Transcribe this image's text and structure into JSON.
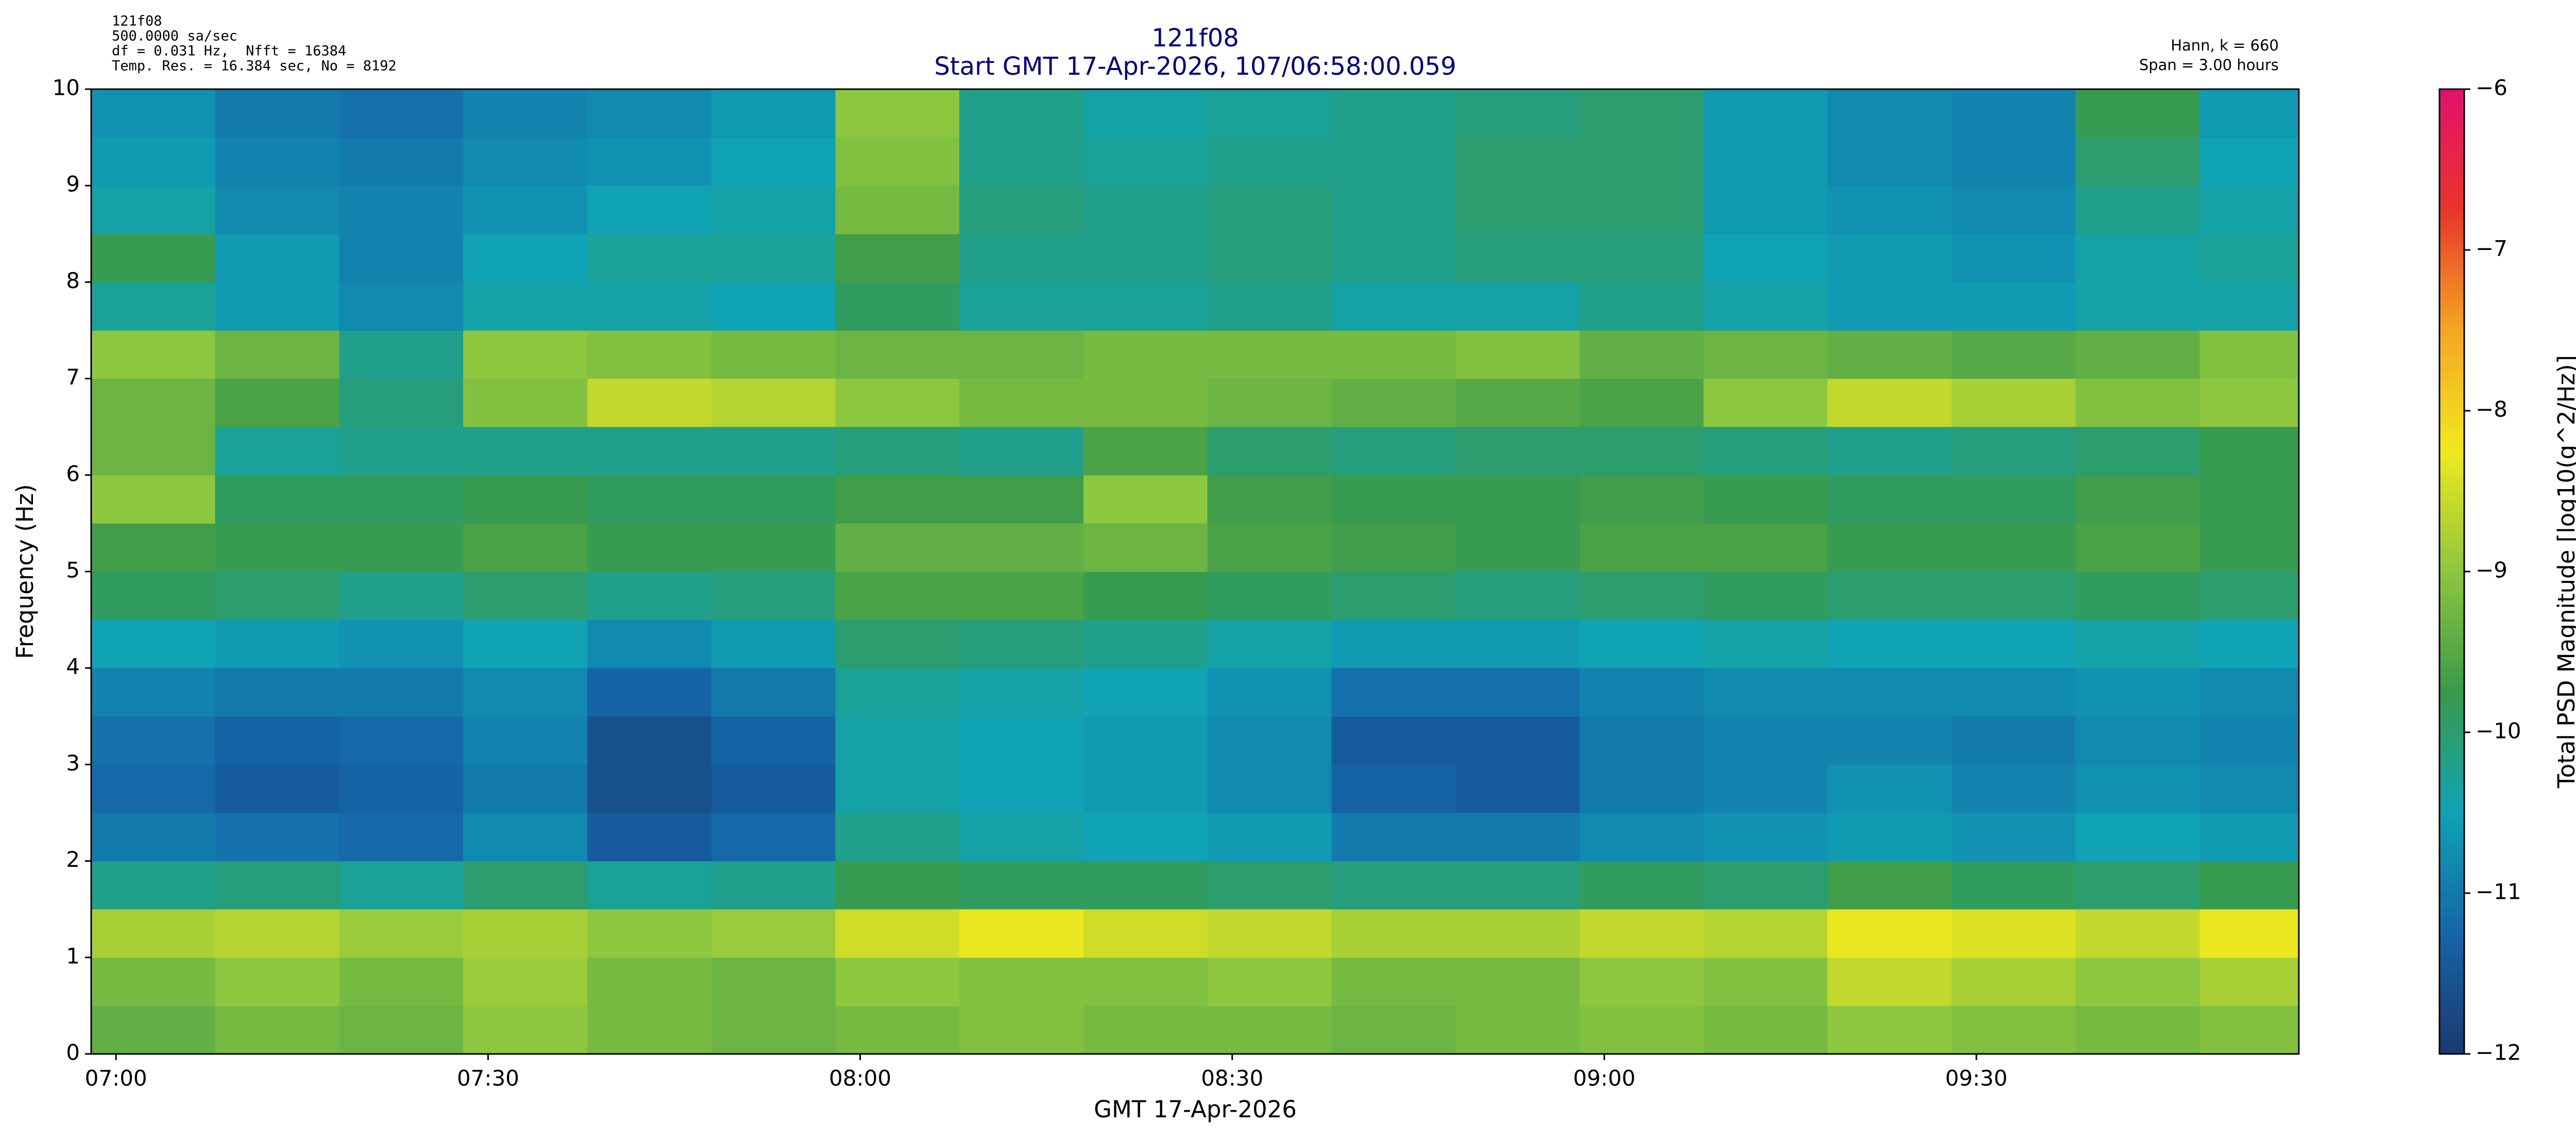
{
  "chart_data": {
    "type": "heatmap",
    "title": "121f08",
    "subtitle": "Start GMT 17-Apr-2026, 107/06:58:00.059",
    "info_left": [
      "121f08",
      "500.0000 sa/sec",
      "df = 0.031 Hz,  Nfft = 16384",
      "Temp. Res. = 16.384 sec, No = 8192"
    ],
    "info_right": [
      "Hann, k = 660",
      "Span = 3.00 hours"
    ],
    "xlabel": "GMT 17-Apr-2026",
    "ylabel": "Frequency (Hz)",
    "colorbar_label": "Total PSD Magnitude [log10(g^2/Hz)]",
    "xlim": [
      "06:58",
      "09:56"
    ],
    "xticks": [
      "07:00",
      "07:30",
      "08:00",
      "08:30",
      "09:00",
      "09:30"
    ],
    "ylim": [
      0,
      10
    ],
    "yticks": [
      0,
      1,
      2,
      3,
      4,
      5,
      6,
      7,
      8,
      9,
      10
    ],
    "clim": [
      -12,
      -6
    ],
    "cticks": [
      {
        "value": -12,
        "label": "−12"
      },
      {
        "value": -11,
        "label": "−11"
      },
      {
        "value": -10,
        "label": "−10"
      },
      {
        "value": -9,
        "label": "−9"
      },
      {
        "value": -8,
        "label": "−8"
      },
      {
        "value": -7,
        "label": "−7"
      },
      {
        "value": -6,
        "label": "−6"
      }
    ],
    "colormap": [
      "#1b3a70",
      "#1565a8",
      "#0fa3b5",
      "#3a9a4a",
      "#8dc63f",
      "#f1e81d",
      "#f5a623",
      "#e8352b",
      "#e3106e"
    ],
    "x": [
      "06:58",
      "07:08",
      "07:18",
      "07:28",
      "07:38",
      "07:48",
      "07:58",
      "08:08",
      "08:18",
      "08:28",
      "08:38",
      "08:48",
      "08:58",
      "09:08",
      "09:18",
      "09:28",
      "09:38",
      "09:48"
    ],
    "y": [
      0,
      0.5,
      1,
      1.5,
      2,
      2.5,
      3,
      3.5,
      4,
      4.5,
      5,
      5.5,
      6,
      6.5,
      7,
      7.5,
      8,
      8.5,
      9,
      9.5,
      10
    ],
    "z": [
      [
        -9.4,
        -9.2,
        -9.3,
        -9.0,
        -9.2,
        -9.3,
        -9.2,
        -9.1,
        -9.2,
        -9.2,
        -9.3,
        -9.2,
        -9.1,
        -9.2,
        -9.0,
        -9.1,
        -9.2,
        -9.1
      ],
      [
        -9.2,
        -9.0,
        -9.2,
        -8.9,
        -9.2,
        -9.3,
        -9.0,
        -9.1,
        -9.1,
        -9.0,
        -9.2,
        -9.2,
        -9.0,
        -9.1,
        -8.6,
        -8.8,
        -9.0,
        -8.8
      ],
      [
        -8.8,
        -8.7,
        -8.9,
        -8.8,
        -9.0,
        -8.9,
        -8.5,
        -8.3,
        -8.5,
        -8.6,
        -8.8,
        -8.8,
        -8.6,
        -8.7,
        -8.3,
        -8.4,
        -8.6,
        -8.3
      ],
      [
        -10.2,
        -10.1,
        -10.3,
        -10.0,
        -10.3,
        -10.2,
        -9.8,
        -9.9,
        -9.9,
        -10.0,
        -10.1,
        -10.1,
        -9.9,
        -10.0,
        -9.7,
        -9.9,
        -10.0,
        -9.8
      ],
      [
        -11.0,
        -11.1,
        -11.2,
        -10.8,
        -11.4,
        -11.2,
        -10.2,
        -10.4,
        -10.5,
        -10.6,
        -11.0,
        -11.0,
        -10.8,
        -10.7,
        -10.6,
        -10.7,
        -10.5,
        -10.6
      ],
      [
        -11.2,
        -11.4,
        -11.3,
        -11.0,
        -11.6,
        -11.4,
        -10.4,
        -10.5,
        -10.6,
        -10.8,
        -11.3,
        -11.4,
        -11.0,
        -10.9,
        -10.7,
        -10.9,
        -10.7,
        -10.8
      ],
      [
        -11.1,
        -11.3,
        -11.2,
        -10.9,
        -11.6,
        -11.3,
        -10.4,
        -10.5,
        -10.6,
        -10.8,
        -11.4,
        -11.4,
        -11.0,
        -10.9,
        -10.9,
        -11.0,
        -10.8,
        -10.9
      ],
      [
        -10.9,
        -11.0,
        -11.0,
        -10.8,
        -11.3,
        -11.0,
        -10.3,
        -10.4,
        -10.5,
        -10.7,
        -11.1,
        -11.1,
        -10.9,
        -10.8,
        -10.8,
        -10.8,
        -10.7,
        -10.8
      ],
      [
        -10.5,
        -10.6,
        -10.7,
        -10.5,
        -10.8,
        -10.6,
        -10.0,
        -10.1,
        -10.2,
        -10.4,
        -10.6,
        -10.6,
        -10.5,
        -10.4,
        -10.5,
        -10.5,
        -10.4,
        -10.5
      ],
      [
        -9.9,
        -10.0,
        -10.2,
        -10.0,
        -10.2,
        -10.1,
        -9.6,
        -9.6,
        -9.8,
        -9.9,
        -10.0,
        -10.1,
        -10.0,
        -9.9,
        -10.0,
        -10.0,
        -9.9,
        -10.0
      ],
      [
        -9.7,
        -9.8,
        -9.8,
        -9.6,
        -9.8,
        -9.8,
        -9.4,
        -9.4,
        -9.3,
        -9.6,
        -9.7,
        -9.8,
        -9.6,
        -9.6,
        -9.8,
        -9.8,
        -9.6,
        -9.8
      ],
      [
        -9.0,
        -9.9,
        -9.9,
        -9.8,
        -9.9,
        -9.9,
        -9.7,
        -9.7,
        -9.0,
        -9.7,
        -9.8,
        -9.8,
        -9.7,
        -9.8,
        -9.9,
        -9.9,
        -9.7,
        -9.8
      ],
      [
        -9.3,
        -10.3,
        -10.2,
        -10.2,
        -10.2,
        -10.2,
        -10.1,
        -10.2,
        -9.6,
        -10.0,
        -10.1,
        -10.0,
        -10.0,
        -10.1,
        -10.2,
        -10.1,
        -10.0,
        -9.8
      ],
      [
        -9.3,
        -9.6,
        -10.1,
        -9.1,
        -8.6,
        -8.7,
        -9.0,
        -9.2,
        -9.2,
        -9.3,
        -9.4,
        -9.5,
        -9.6,
        -9.0,
        -8.6,
        -8.8,
        -9.1,
        -9.0
      ],
      [
        -9.0,
        -9.3,
        -10.2,
        -9.0,
        -9.1,
        -9.2,
        -9.3,
        -9.3,
        -9.2,
        -9.2,
        -9.2,
        -9.1,
        -9.4,
        -9.3,
        -9.4,
        -9.5,
        -9.4,
        -9.1
      ],
      [
        -10.3,
        -10.6,
        -10.8,
        -10.4,
        -10.4,
        -10.5,
        -9.9,
        -10.3,
        -10.3,
        -10.2,
        -10.4,
        -10.4,
        -10.2,
        -10.4,
        -10.6,
        -10.6,
        -10.4,
        -10.4
      ],
      [
        -9.8,
        -10.6,
        -10.9,
        -10.5,
        -10.3,
        -10.3,
        -9.7,
        -10.2,
        -10.2,
        -10.1,
        -10.2,
        -10.1,
        -10.1,
        -10.5,
        -10.6,
        -10.7,
        -10.4,
        -10.3
      ],
      [
        -10.4,
        -10.8,
        -10.9,
        -10.7,
        -10.5,
        -10.4,
        -9.2,
        -10.1,
        -10.2,
        -10.1,
        -10.2,
        -10.0,
        -10.0,
        -10.6,
        -10.7,
        -10.8,
        -10.2,
        -10.4
      ],
      [
        -10.6,
        -10.9,
        -11.0,
        -10.8,
        -10.7,
        -10.5,
        -9.1,
        -10.2,
        -10.3,
        -10.2,
        -10.2,
        -10.0,
        -10.0,
        -10.6,
        -10.8,
        -10.9,
        -10.0,
        -10.5
      ],
      [
        -10.7,
        -11.0,
        -11.1,
        -10.9,
        -10.8,
        -10.6,
        -9.0,
        -10.2,
        -10.4,
        -10.3,
        -10.2,
        -10.1,
        -10.0,
        -10.6,
        -10.8,
        -10.9,
        -9.8,
        -10.6
      ]
    ]
  }
}
